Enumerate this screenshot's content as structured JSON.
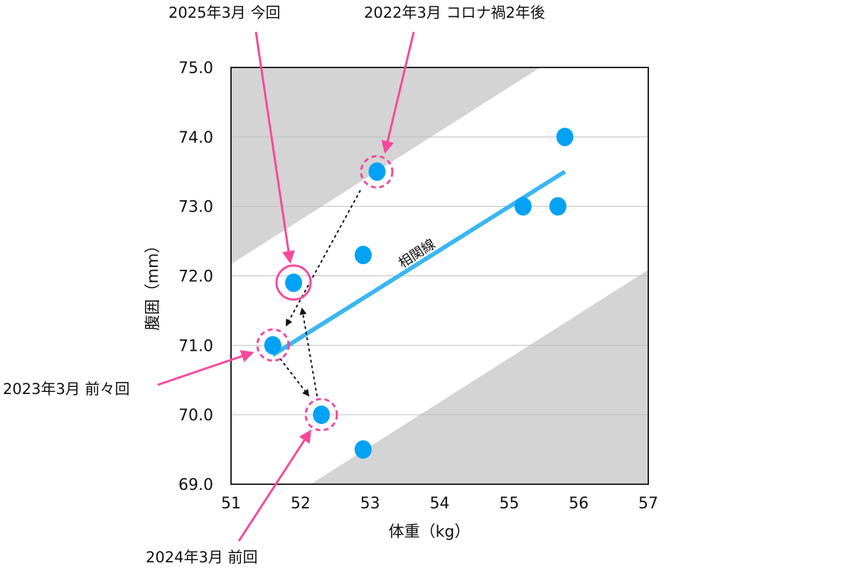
{
  "chart_data": {
    "type": "scatter",
    "title": "",
    "xlabel": "体重（kg）",
    "ylabel": "腹囲（mm）",
    "xlim": [
      51,
      57
    ],
    "ylim": [
      69.0,
      75.0
    ],
    "x_ticks": [
      "51",
      "52",
      "53",
      "54",
      "55",
      "56",
      "57"
    ],
    "y_ticks": [
      "69.0",
      "70.0",
      "71.0",
      "72.0",
      "73.0",
      "74.0",
      "75.0"
    ],
    "grid": "horizontal",
    "points": [
      {
        "x": 55.8,
        "y": 74.0
      },
      {
        "x": 53.1,
        "y": 73.5,
        "label": "2022年3月 コロナ禍2年後"
      },
      {
        "x": 55.2,
        "y": 73.0
      },
      {
        "x": 55.7,
        "y": 73.0
      },
      {
        "x": 52.9,
        "y": 72.3
      },
      {
        "x": 51.9,
        "y": 71.9,
        "label": "2025年3月 今回"
      },
      {
        "x": 51.6,
        "y": 71.0,
        "label": "2023年3月 前々回"
      },
      {
        "x": 52.3,
        "y": 70.0,
        "label": "2024年3月 前回"
      },
      {
        "x": 52.9,
        "y": 69.5
      }
    ],
    "trendline": {
      "label": "相関線",
      "x0": 51.6,
      "y0": 70.86,
      "x1": 55.8,
      "y1": 73.5
    },
    "bands": "gray shaded regions above and below the correlation band"
  },
  "annotations": {
    "current": "2025年3月 今回",
    "covid": "2022年3月 コロナ禍2年後",
    "before_last": "2023年3月 前々回",
    "last": "2024年3月 前回",
    "trend": "相関線"
  },
  "colors": {
    "point": "#03a2f5",
    "trend": "#3bb6f2",
    "annotation": "#f7489c",
    "band": "#d4d4d4",
    "grid": "#bdbdbd"
  }
}
